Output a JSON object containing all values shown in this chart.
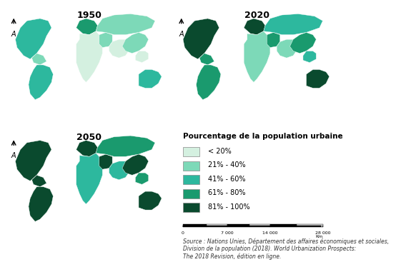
{
  "title_1950": "1950",
  "title_2020": "2020",
  "title_2050": "2050",
  "legend_title": "Pourcentage de la population urbaine",
  "legend_items": [
    {
      "label": "< 20%",
      "color": "#d4f0e0"
    },
    {
      "label": "21% - 40%",
      "color": "#7dd9b8"
    },
    {
      "label": "41% - 60%",
      "color": "#2db89e"
    },
    {
      "label": "61% - 80%",
      "color": "#1a9a6e"
    },
    {
      "label": "81% - 100%",
      "color": "#0a4a2e"
    }
  ],
  "scale_label": "0        7 000      14 000                28 000\n                                                                    Km",
  "source_text": "Source : Nations Unies, Département des affaires économiques et sociales,\nDivision de la population (2018). World Urbanization Prospects:\nThe 2018 Revision, édition en ligne.",
  "ocean_color": "#cce5f5",
  "bg_color": "#ffffff",
  "border_color": "#000000",
  "arrow_color": "#000000",
  "title_fontsize": 9,
  "legend_title_fontsize": 7.5,
  "legend_item_fontsize": 7,
  "source_fontsize": 5.5,
  "scale_fontsize": 5.5
}
